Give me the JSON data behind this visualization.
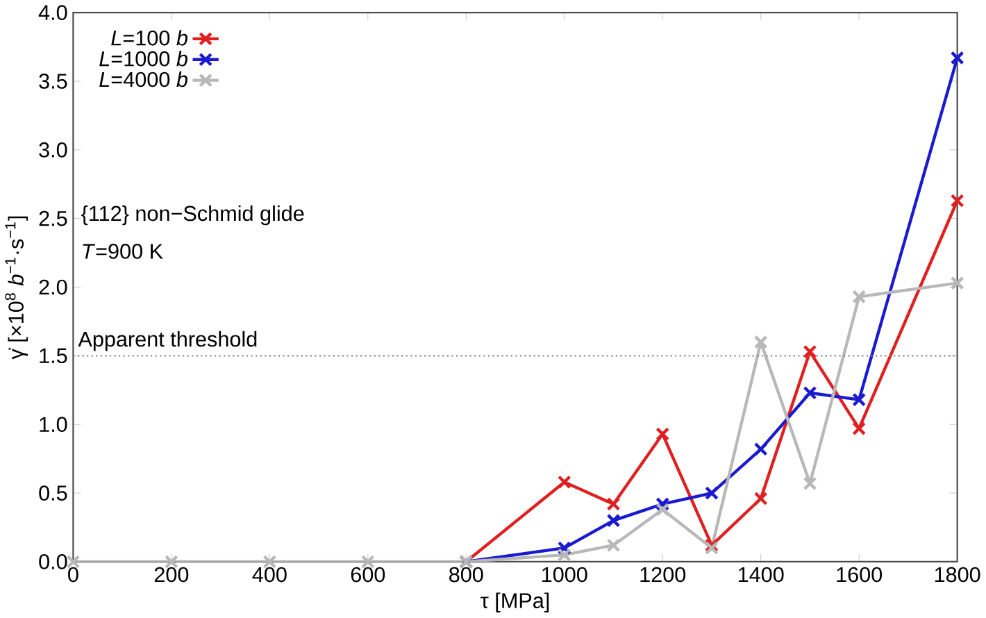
{
  "chart_data": {
    "type": "line",
    "xlabel": "τ [MPa]",
    "ylabel": "γ̇ [×10$^{8}$ *b*$^{−1}$·s$^{−1}$]",
    "x": [
      0,
      200,
      400,
      600,
      800,
      1000,
      1100,
      1200,
      1300,
      1400,
      1500,
      1600,
      1800
    ],
    "series": [
      {
        "name": "*L*=100 *b*",
        "color": "#e02020",
        "values": [
          null,
          null,
          null,
          null,
          0,
          0.58,
          0.42,
          0.93,
          0.12,
          0.46,
          1.53,
          0.97,
          2.63
        ]
      },
      {
        "name": "*L*=1000 *b*",
        "color": "#1a1ad0",
        "values": [
          null,
          null,
          null,
          null,
          0,
          0.1,
          0.3,
          0.42,
          0.5,
          0.82,
          1.23,
          1.18,
          3.67
        ]
      },
      {
        "name": "*L*=4000 *b*",
        "color": "#b8b8b8",
        "values": [
          0,
          0,
          0,
          0,
          0,
          0.05,
          0.12,
          0.38,
          0.1,
          1.6,
          0.57,
          1.93,
          2.03
        ]
      }
    ],
    "xlim": [
      0,
      1800
    ],
    "ylim": [
      0,
      4
    ],
    "xticks": [
      0,
      200,
      400,
      600,
      800,
      1000,
      1200,
      1400,
      1600,
      1800
    ],
    "yticks": [
      {
        "value": 0,
        "label": "0.0"
      },
      {
        "value": 0.5,
        "label": "0.5"
      },
      {
        "value": 1,
        "label": "1.0"
      },
      {
        "value": 1.5,
        "label": "1.5"
      },
      {
        "value": 2,
        "label": "2.0"
      },
      {
        "value": 2.5,
        "label": "2.5"
      },
      {
        "value": 3,
        "label": "3.0"
      },
      {
        "value": 3.5,
        "label": "3.5"
      },
      {
        "value": 4,
        "label": "4.0"
      }
    ],
    "ref_lines": [
      {
        "axis": "y",
        "value": 1.5,
        "label": "Apparent threshold",
        "color": "#888888",
        "line_style": "dotted"
      }
    ],
    "annotations": [
      "{112} non−Schmid glide",
      "*T*=900 K"
    ],
    "legend": "top left",
    "marker": "cross",
    "line_style": "solid",
    "grid": false
  }
}
